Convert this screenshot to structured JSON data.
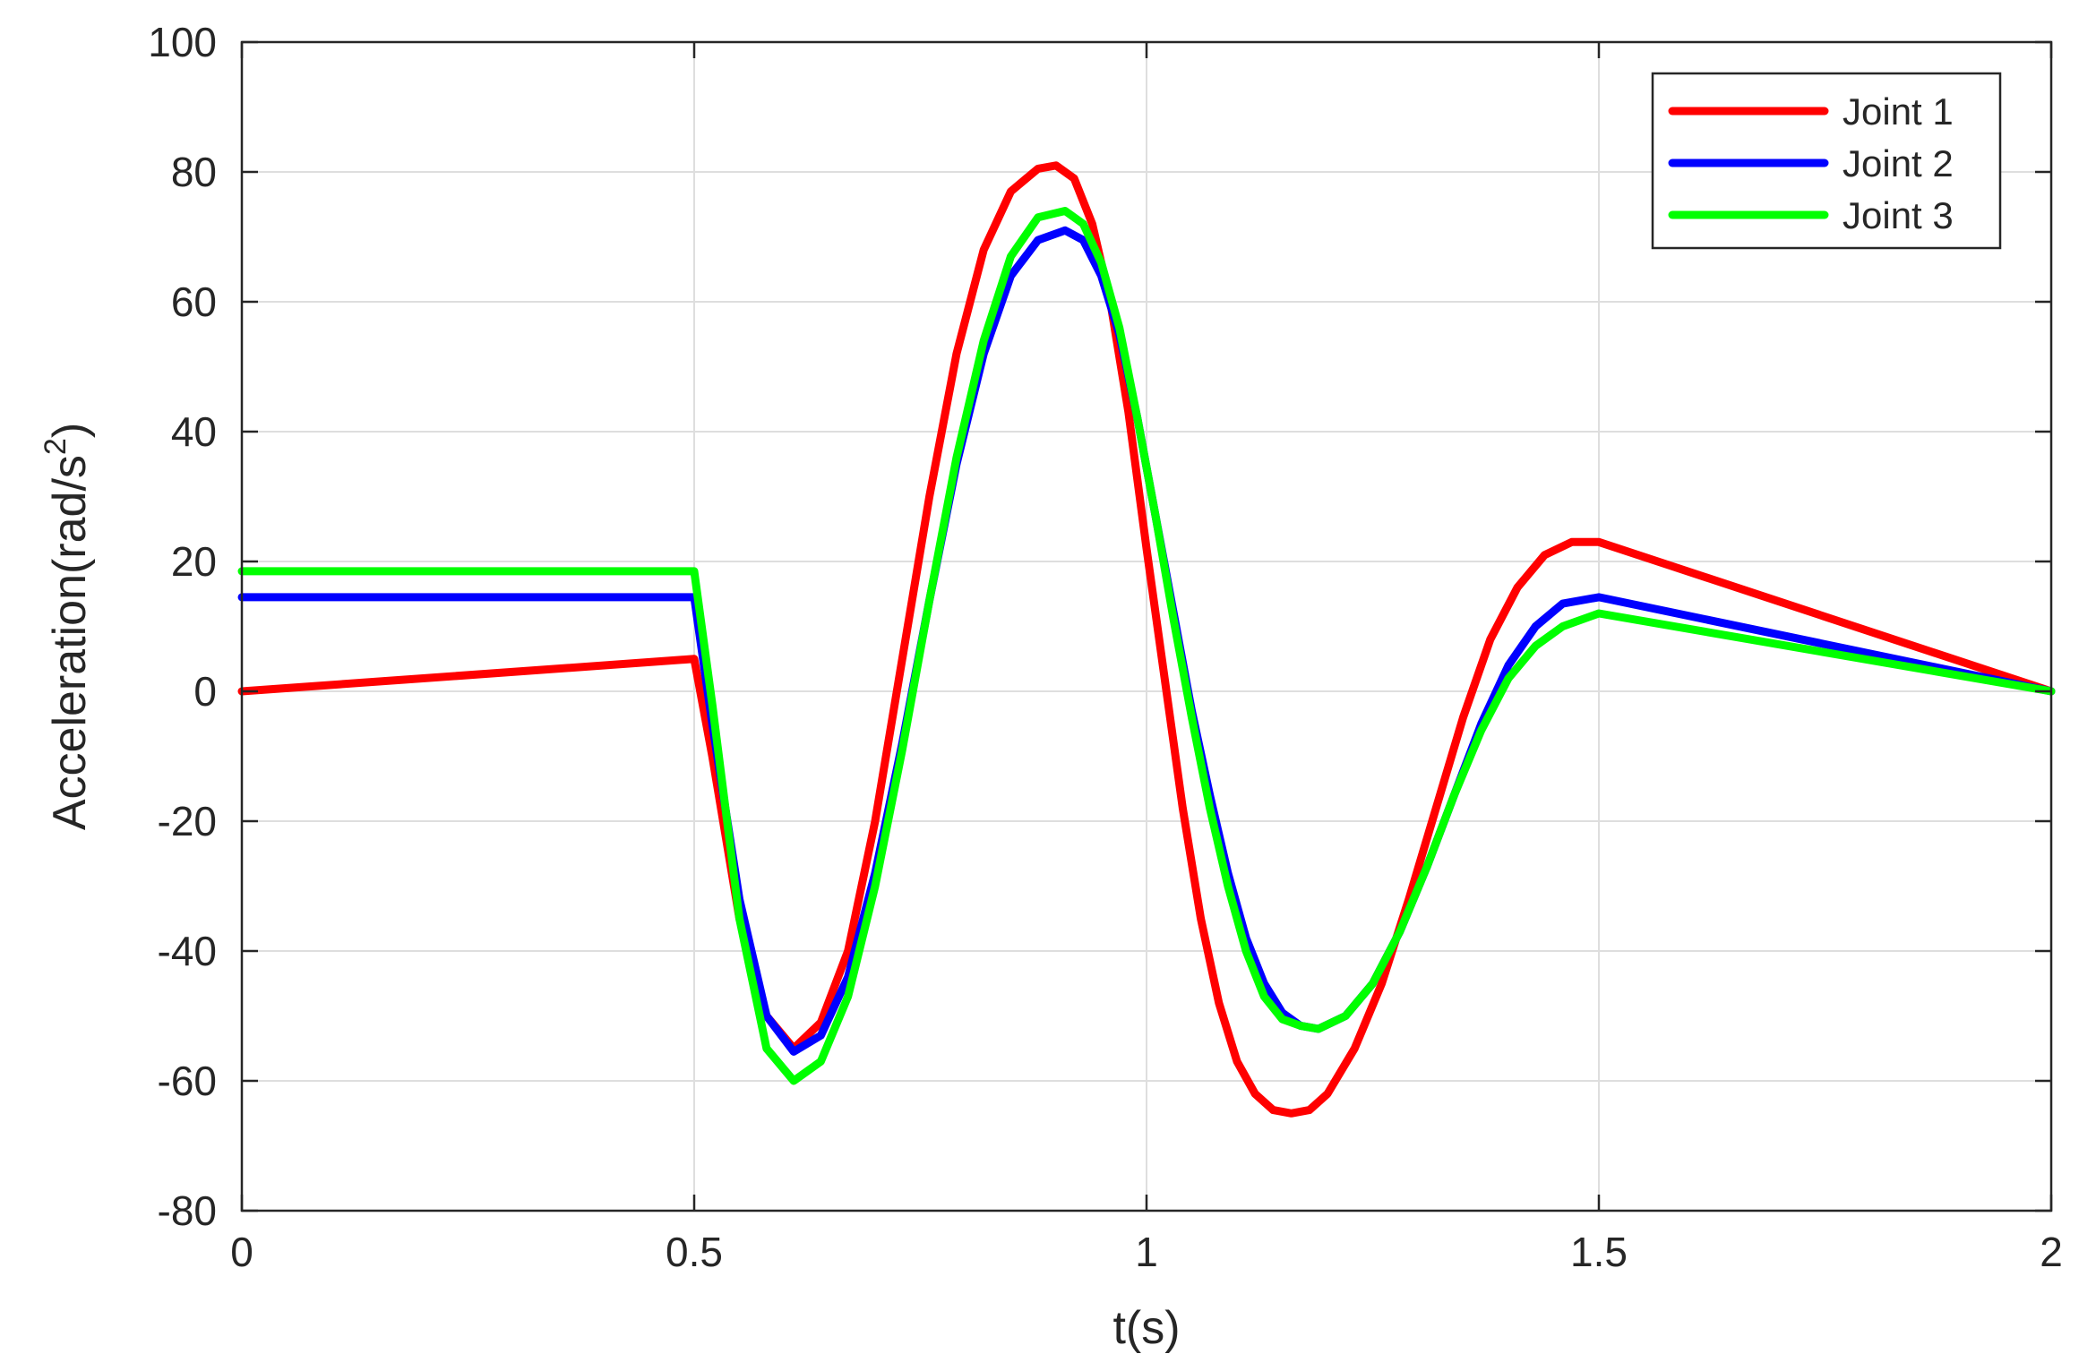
{
  "chart_data": {
    "type": "line",
    "title": "",
    "xlabel": "t(s)",
    "ylabel": "Acceleration(rad/s",
    "ylabel_superscript": "2",
    "ylabel_suffix": ")",
    "xlim": [
      0,
      2
    ],
    "ylim": [
      -80,
      100
    ],
    "xticks": [
      0,
      0.5,
      1,
      1.5,
      2
    ],
    "xtick_labels": [
      "0",
      "0.5",
      "1",
      "1.5",
      "2"
    ],
    "yticks": [
      -80,
      -60,
      -40,
      -20,
      0,
      20,
      40,
      60,
      80,
      100
    ],
    "ytick_labels": [
      "-80",
      "-60",
      "-40",
      "-20",
      "0",
      "20",
      "40",
      "60",
      "80",
      "100"
    ],
    "grid": true,
    "legend_position": "top-right",
    "series": [
      {
        "name": "Joint 1",
        "color": "#ff0000",
        "x": [
          0,
          0.5,
          0.52,
          0.55,
          0.58,
          0.61,
          0.64,
          0.67,
          0.7,
          0.73,
          0.76,
          0.79,
          0.82,
          0.85,
          0.88,
          0.9,
          0.92,
          0.94,
          0.96,
          0.98,
          1.0,
          1.02,
          1.04,
          1.06,
          1.08,
          1.1,
          1.12,
          1.14,
          1.16,
          1.18,
          1.2,
          1.23,
          1.26,
          1.29,
          1.32,
          1.35,
          1.38,
          1.41,
          1.44,
          1.47,
          1.5,
          2.0
        ],
        "y": [
          0,
          5,
          -10,
          -35,
          -50,
          -55,
          -51,
          -40,
          -20,
          5,
          30,
          52,
          68,
          77,
          80.5,
          81,
          79,
          72,
          60,
          43,
          22,
          2,
          -18,
          -35,
          -48,
          -57,
          -62,
          -64.5,
          -65,
          -64.5,
          -62,
          -55,
          -45,
          -32,
          -18,
          -4,
          8,
          16,
          21,
          23,
          23,
          0
        ]
      },
      {
        "name": "Joint 2",
        "color": "#0000ff",
        "x": [
          0,
          0.5,
          0.52,
          0.55,
          0.58,
          0.61,
          0.64,
          0.67,
          0.7,
          0.73,
          0.76,
          0.79,
          0.82,
          0.85,
          0.88,
          0.91,
          0.93,
          0.95,
          0.97,
          0.99,
          1.01,
          1.03,
          1.05,
          1.07,
          1.09,
          1.11,
          1.13,
          1.15,
          1.17,
          1.19,
          1.22,
          1.25,
          1.28,
          1.31,
          1.34,
          1.37,
          1.4,
          1.43,
          1.46,
          1.5,
          2.0
        ],
        "y": [
          14.5,
          14.5,
          -5,
          -32,
          -50,
          -55.5,
          -53,
          -44,
          -28,
          -8,
          14,
          35,
          52,
          64,
          69.5,
          71,
          69.5,
          64,
          55,
          42,
          27,
          12,
          -3,
          -16,
          -28,
          -38,
          -45,
          -49.5,
          -51.5,
          -52,
          -50,
          -45,
          -37,
          -27,
          -16,
          -5,
          4,
          10,
          13.5,
          14.5,
          0
        ]
      },
      {
        "name": "Joint 3",
        "color": "#00ff00",
        "x": [
          0,
          0.5,
          0.52,
          0.55,
          0.58,
          0.61,
          0.64,
          0.67,
          0.7,
          0.73,
          0.76,
          0.79,
          0.82,
          0.85,
          0.88,
          0.91,
          0.93,
          0.95,
          0.97,
          0.99,
          1.01,
          1.03,
          1.05,
          1.07,
          1.09,
          1.11,
          1.13,
          1.15,
          1.17,
          1.19,
          1.22,
          1.25,
          1.28,
          1.31,
          1.34,
          1.37,
          1.4,
          1.43,
          1.46,
          1.5,
          2.0
        ],
        "y": [
          18.5,
          18.5,
          -2,
          -35,
          -55,
          -60,
          -57,
          -47,
          -30,
          -9,
          14,
          36,
          54,
          67,
          73,
          74,
          72,
          66,
          56,
          42,
          27,
          11,
          -4,
          -18,
          -30,
          -40,
          -47,
          -50.5,
          -51.5,
          -52,
          -50,
          -45,
          -37,
          -27,
          -16,
          -6,
          2,
          7,
          10,
          12,
          0
        ]
      }
    ]
  }
}
